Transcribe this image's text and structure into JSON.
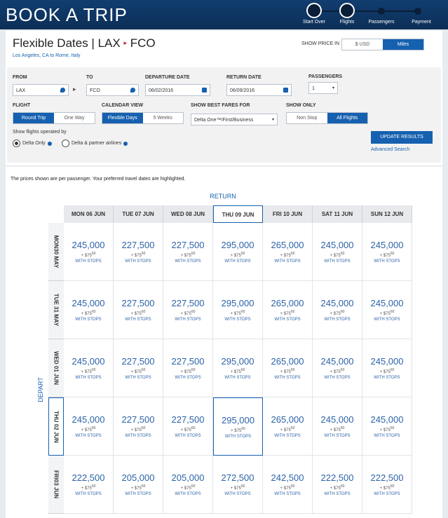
{
  "header": {
    "title": "BOOK A TRIP",
    "steps": [
      "Start Over",
      "Flights",
      "Passengers",
      "Payment"
    ]
  },
  "search": {
    "title": "Flexible Dates | LAX",
    "destination": "FCO",
    "subtitle": "Los Angeles, CA to Rome, Italy",
    "show_price_label": "SHOW PRICE IN",
    "price_options": [
      "$ USD",
      "Miles"
    ]
  },
  "form": {
    "from_label": "FROM",
    "from": "LAX",
    "to_label": "TO",
    "to": "FCO",
    "departure_label": "DEPARTURE DATE",
    "departure": "06/02/2016",
    "return_label": "RETURN DATE",
    "return": "06/09/2016",
    "passengers_label": "PASSENGERS",
    "passengers": "1",
    "flight_label": "FLIGHT",
    "flight_options": [
      "Round Trip",
      "One Way"
    ],
    "calendar_label": "CALENDAR VIEW",
    "calendar_options": [
      "Flexible Days",
      "5 Weeks"
    ],
    "fares_label": "SHOW BEST FARES FOR",
    "fares": "Delta One™/First/Business",
    "show_only_label": "SHOW ONLY",
    "show_only_options": [
      "Non Stop",
      "All Flights"
    ],
    "operated_label": "Show flights operated by",
    "operated_options": [
      "Delta Only",
      "Delta & partner airlines"
    ],
    "update_button": "UPDATE RESULTS",
    "advanced_link": "Advanced Search"
  },
  "note": "The prices shown are per passenger. Your preferred travel dates are highlighted.",
  "grid": {
    "return_label": "RETURN",
    "depart_label": "DEPART",
    "columns": [
      "MON 06 JUN",
      "TUE 07 JUN",
      "WED 08 JUN",
      "THU 09 JUN",
      "FRI 10 JUN",
      "SAT 11 JUN",
      "SUN 12 JUN"
    ],
    "rows": [
      {
        "label": "MON30 MAY",
        "cells": [
          {
            "miles": "245,000",
            "fee": "+ $75",
            "cents": "60",
            "note": "WITH STOPS"
          },
          {
            "miles": "227,500",
            "fee": "+ $75",
            "cents": "60",
            "note": "WITH STOPS"
          },
          {
            "miles": "227,500",
            "fee": "+ $75",
            "cents": "60",
            "note": "WITH STOPS"
          },
          {
            "miles": "295,000",
            "fee": "+ $75",
            "cents": "60",
            "note": "WITH STOPS"
          },
          {
            "miles": "265,000",
            "fee": "+ $75",
            "cents": "60",
            "note": "WITH STOPS"
          },
          {
            "miles": "245,000",
            "fee": "+ $75",
            "cents": "60",
            "note": "WITH STOPS"
          },
          {
            "miles": "245,000",
            "fee": "+ $75",
            "cents": "60",
            "note": "WITH STOPS"
          }
        ]
      },
      {
        "label": "TUE 31 MAY",
        "cells": [
          {
            "miles": "245,000",
            "fee": "+ $75",
            "cents": "60",
            "note": "WITH STOPS"
          },
          {
            "miles": "227,500",
            "fee": "+ $75",
            "cents": "60",
            "note": "WITH STOPS"
          },
          {
            "miles": "227,500",
            "fee": "+ $75",
            "cents": "60",
            "note": "WITH STOPS"
          },
          {
            "miles": "295,000",
            "fee": "+ $75",
            "cents": "60",
            "note": "WITH STOPS"
          },
          {
            "miles": "265,000",
            "fee": "+ $75",
            "cents": "60",
            "note": "WITH STOPS"
          },
          {
            "miles": "245,000",
            "fee": "+ $75",
            "cents": "60",
            "note": "WITH STOPS"
          },
          {
            "miles": "245,000",
            "fee": "+ $75",
            "cents": "60",
            "note": "WITH STOPS"
          }
        ]
      },
      {
        "label": "WED 01 JUN",
        "cells": [
          {
            "miles": "245,000",
            "fee": "+ $75",
            "cents": "60",
            "note": "WITH STOPS"
          },
          {
            "miles": "227,500",
            "fee": "+ $75",
            "cents": "60",
            "note": "WITH STOPS"
          },
          {
            "miles": "227,500",
            "fee": "+ $75",
            "cents": "60",
            "note": "WITH STOPS"
          },
          {
            "miles": "295,000",
            "fee": "+ $75",
            "cents": "60",
            "note": "WITH STOPS"
          },
          {
            "miles": "265,000",
            "fee": "+ $75",
            "cents": "60",
            "note": "WITH STOPS"
          },
          {
            "miles": "245,000",
            "fee": "+ $75",
            "cents": "60",
            "note": "WITH STOPS"
          },
          {
            "miles": "245,000",
            "fee": "+ $75",
            "cents": "60",
            "note": "WITH STOPS"
          }
        ]
      },
      {
        "label": "THU 02 JUN",
        "cells": [
          {
            "miles": "245,000",
            "fee": "+ $75",
            "cents": "60",
            "note": "WITH STOPS"
          },
          {
            "miles": "227,500",
            "fee": "+ $75",
            "cents": "60",
            "note": "WITH STOPS"
          },
          {
            "miles": "227,500",
            "fee": "+ $75",
            "cents": "60",
            "note": "WITH STOPS"
          },
          {
            "miles": "295,000",
            "fee": "+ $75",
            "cents": "60",
            "note": "WITH STOPS"
          },
          {
            "miles": "265,000",
            "fee": "+ $75",
            "cents": "60",
            "note": "WITH STOPS"
          },
          {
            "miles": "245,000",
            "fee": "+ $75",
            "cents": "60",
            "note": "WITH STOPS"
          },
          {
            "miles": "245,000",
            "fee": "+ $75",
            "cents": "60",
            "note": "WITH STOPS"
          }
        ]
      },
      {
        "label": "FRI03 JUN",
        "cells": [
          {
            "miles": "222,500",
            "fee": "+ $75",
            "cents": "60",
            "note": "WITH STOPS"
          },
          {
            "miles": "205,000",
            "fee": "+ $75",
            "cents": "60",
            "note": "WITH STOPS"
          },
          {
            "miles": "205,000",
            "fee": "+ $75",
            "cents": "60",
            "note": "WITH STOPS"
          },
          {
            "miles": "272,500",
            "fee": "+ $75",
            "cents": "60",
            "note": "WITH STOPS"
          },
          {
            "miles": "242,500",
            "fee": "+ $75",
            "cents": "60",
            "note": "WITH STOPS"
          },
          {
            "miles": "222,500",
            "fee": "+ $75",
            "cents": "60",
            "note": "WITH STOPS"
          },
          {
            "miles": "222,500",
            "fee": "+ $75",
            "cents": "60",
            "note": "WITH STOPS"
          }
        ]
      }
    ]
  }
}
